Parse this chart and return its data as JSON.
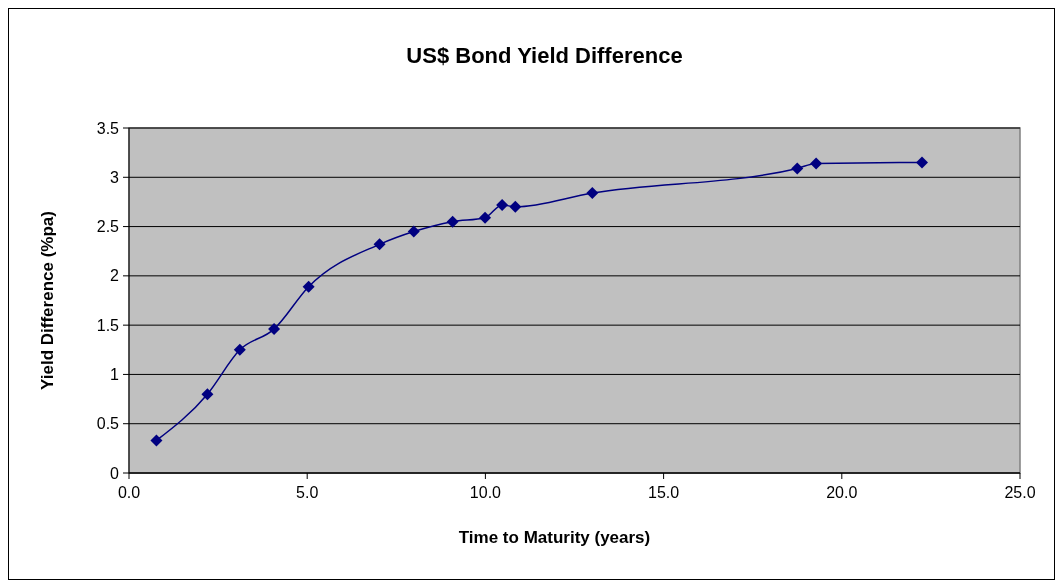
{
  "chart_data": {
    "type": "line",
    "title": "US$ Bond Yield Difference",
    "xlabel": "Time to Maturity (years)",
    "ylabel": "Yield Difference (%pa)",
    "x": [
      0.77,
      2.2,
      3.11,
      4.07,
      5.04,
      7.03,
      7.99,
      9.08,
      9.99,
      10.47,
      10.84,
      13.0,
      18.75,
      19.28,
      22.25
    ],
    "series": [
      {
        "color": "#000080",
        "values": [
          0.33,
          0.8,
          1.25,
          1.46,
          1.89,
          2.32,
          2.45,
          2.55,
          2.59,
          2.72,
          2.7,
          2.84,
          3.09,
          3.14,
          3.15
        ]
      }
    ],
    "xlim": [
      0,
      25
    ],
    "xticks": [
      {
        "value": 0,
        "label": "0.0"
      },
      {
        "value": 5,
        "label": "5.0"
      },
      {
        "value": 10,
        "label": "10.0"
      },
      {
        "value": 15,
        "label": "15.0"
      },
      {
        "value": 20,
        "label": "20.0"
      },
      {
        "value": 25,
        "label": "25.0"
      }
    ],
    "ylim": [
      0,
      3.5
    ],
    "yticks": [
      0,
      0.5,
      1,
      1.5,
      2,
      2.5,
      3,
      3.5
    ],
    "grid": "y",
    "marker": "diamond",
    "line_style": "solid"
  }
}
